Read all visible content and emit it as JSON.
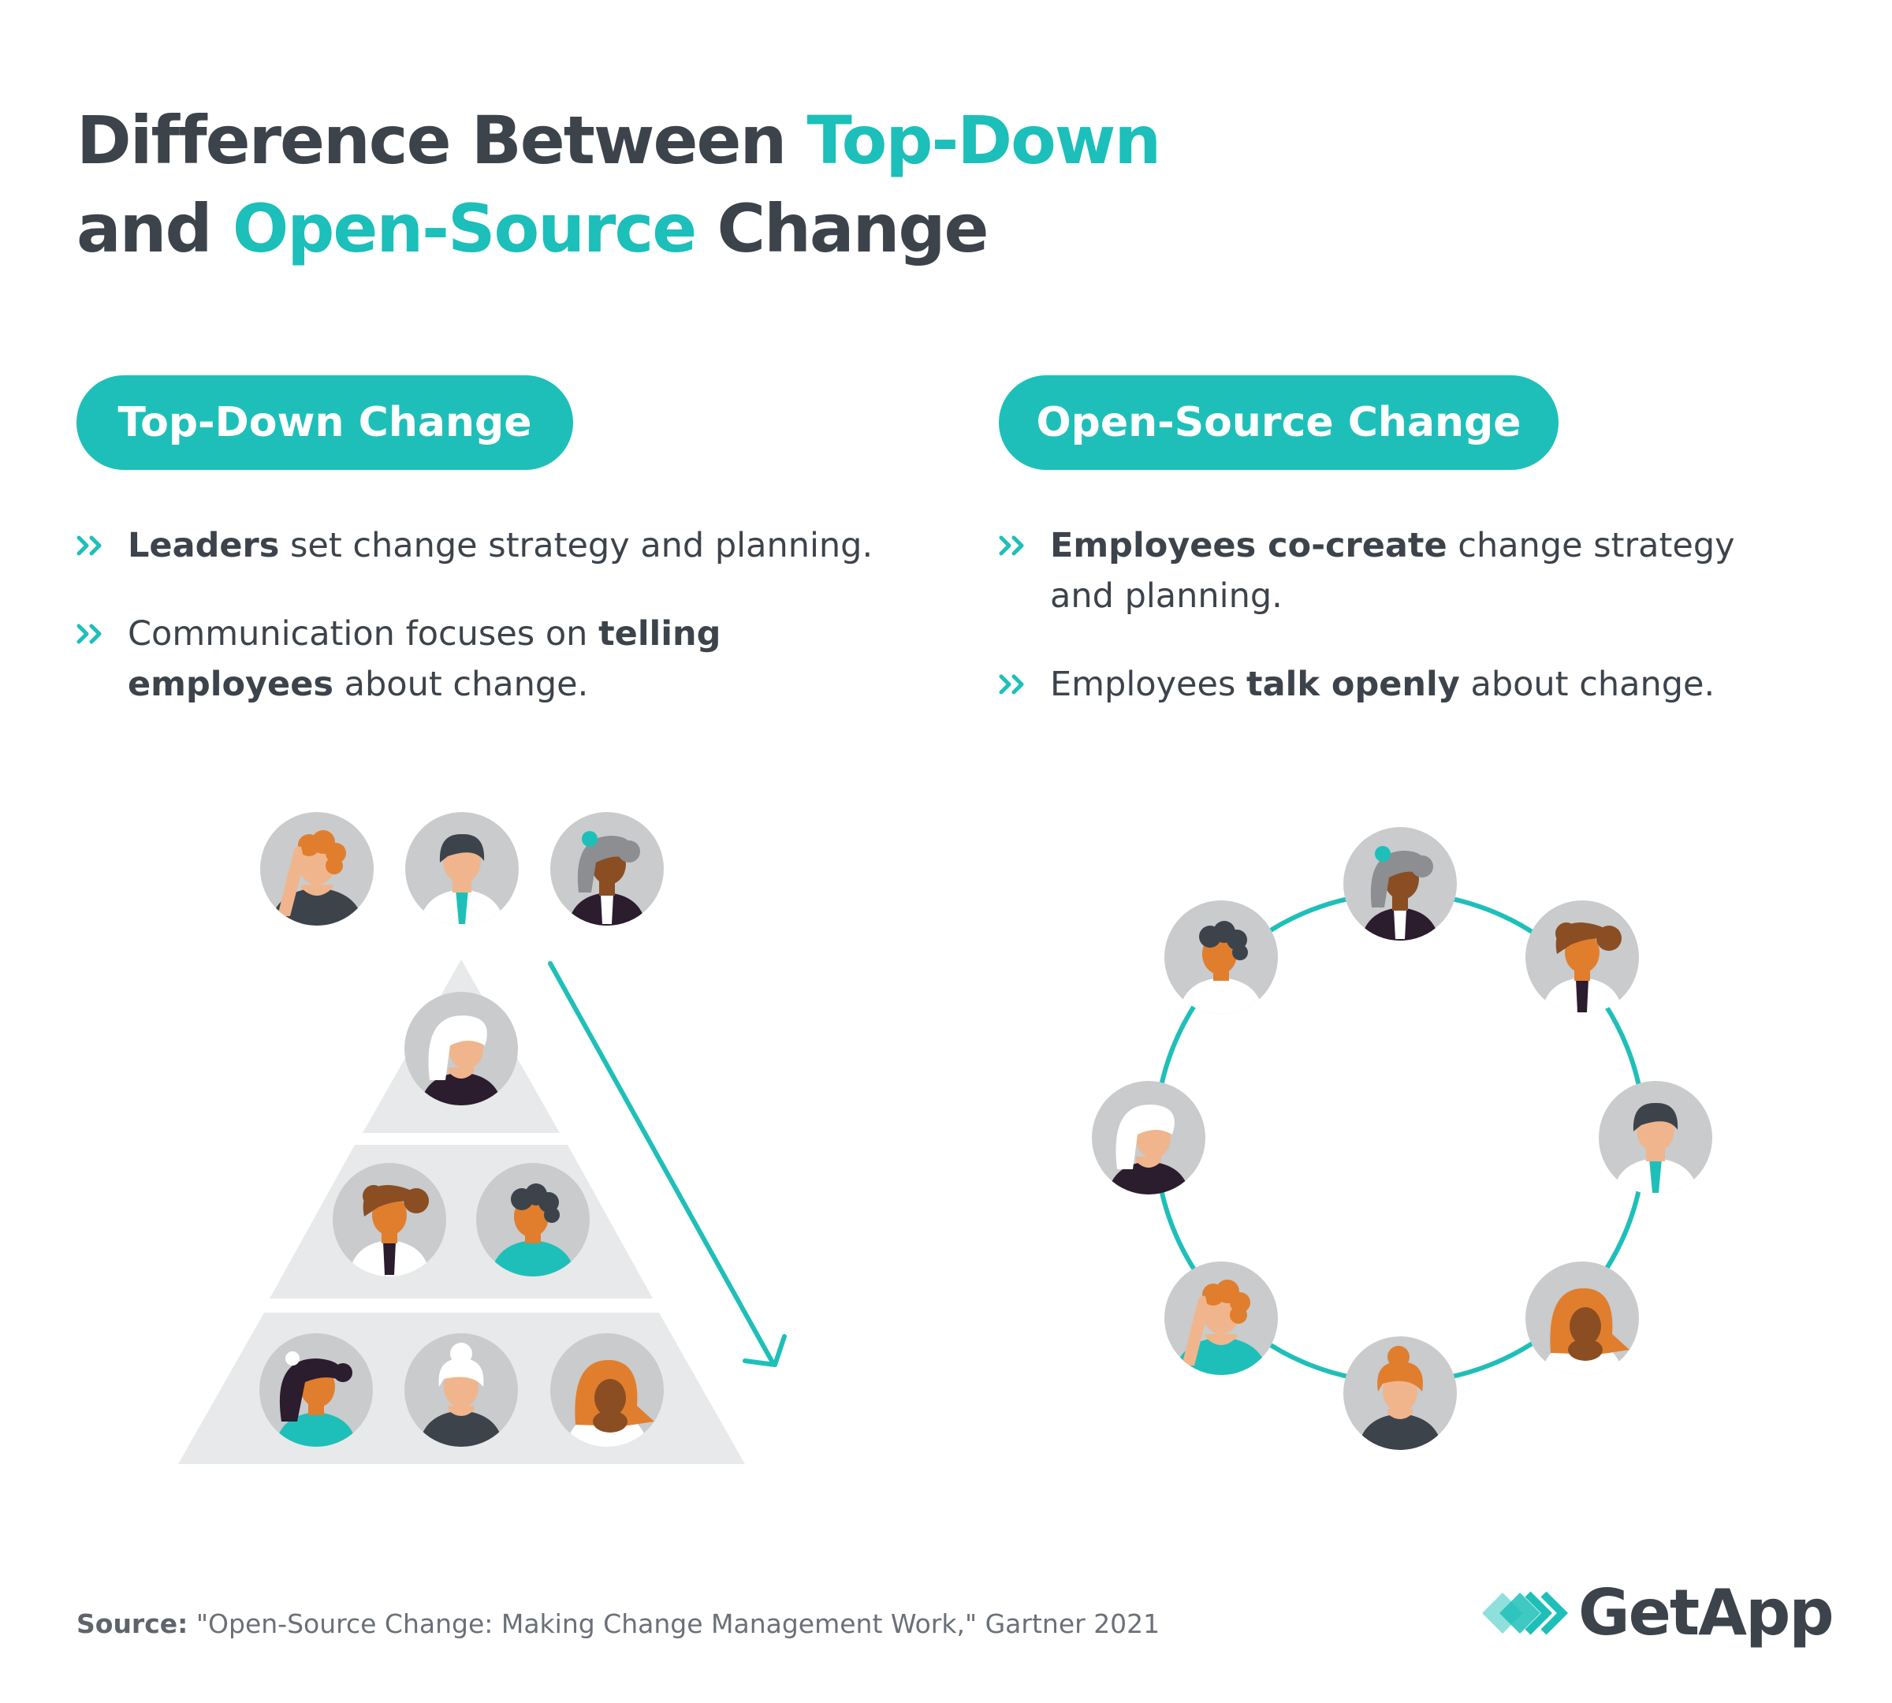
{
  "title": {
    "part1": "Difference Between ",
    "accent1": "Top-Down",
    "part2": "and ",
    "accent2": "Open-Source",
    "part3": " Change"
  },
  "colors": {
    "accent": "#1fbfb9",
    "text": "#3d434b",
    "avatar_bg": "#c9cbcd",
    "pyramid": "#e8e9ea"
  },
  "left": {
    "pill": "Top-Down Change",
    "bullets": [
      {
        "bold": "Leaders",
        "rest": " set change strategy and planning."
      },
      {
        "pre": "Communication focuses on ",
        "bold": "telling employees",
        "rest": " about change."
      }
    ]
  },
  "right": {
    "pill": "Open-Source Change",
    "bullets": [
      {
        "bold": "Employees co-create",
        "rest": " change strategy and planning."
      },
      {
        "pre": "Employees ",
        "bold": "talk openly",
        "rest": " about change."
      }
    ]
  },
  "bullet_icon": "double-chevron-icon",
  "footer": {
    "source_label": "Source:",
    "source_text": " \"Open-Source Change: Making Change Management Work,\" Gartner 2021",
    "logo": "GetApp"
  }
}
